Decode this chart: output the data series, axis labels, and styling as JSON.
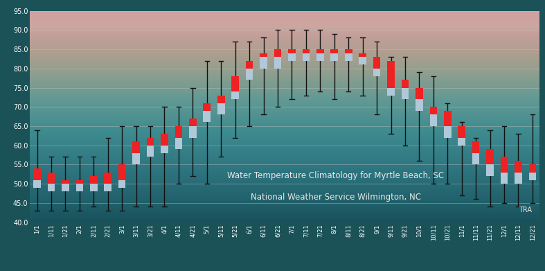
{
  "title1": "Water Temperature Climatology for Myrtle Beach, SC",
  "title2": "National Weather Service Wilmington, NC",
  "credit": "TRA",
  "ylim": [
    40.0,
    95.0
  ],
  "yticks": [
    40.0,
    45.0,
    50.0,
    55.0,
    60.0,
    65.0,
    70.0,
    75.0,
    80.0,
    85.0,
    90.0,
    95.0
  ],
  "x_labels": [
    "1/1",
    "1/11",
    "1/21",
    "2/1",
    "2/11",
    "2/21",
    "3/1",
    "3/11",
    "3/21",
    "4/1",
    "4/11",
    "4/21",
    "5/1",
    "5/11",
    "5/21",
    "6/1",
    "6/11",
    "6/21",
    "7/1",
    "7/11",
    "7/21",
    "8/1",
    "8/11",
    "8/21",
    "9/1",
    "9/11",
    "9/21",
    "10/1",
    "10/11",
    "10/21",
    "11/1",
    "11/11",
    "11/21",
    "12/1",
    "12/11",
    "12/21"
  ],
  "data": [
    {
      "label": "1/1",
      "low": 43,
      "q1": 49,
      "median": 51,
      "q3": 54,
      "high": 64
    },
    {
      "label": "1/11",
      "low": 43,
      "q1": 48,
      "median": 50,
      "q3": 53,
      "high": 57
    },
    {
      "label": "1/21",
      "low": 43,
      "q1": 48,
      "median": 50,
      "q3": 51,
      "high": 57
    },
    {
      "label": "2/1",
      "low": 43,
      "q1": 48,
      "median": 50,
      "q3": 51,
      "high": 57
    },
    {
      "label": "2/11",
      "low": 44,
      "q1": 48,
      "median": 50,
      "q3": 52,
      "high": 57
    },
    {
      "label": "2/21",
      "low": 43,
      "q1": 48,
      "median": 50,
      "q3": 53,
      "high": 62
    },
    {
      "label": "3/1",
      "low": 43,
      "q1": 49,
      "median": 51,
      "q3": 55,
      "high": 65
    },
    {
      "label": "3/11",
      "low": 44,
      "q1": 55,
      "median": 58,
      "q3": 61,
      "high": 65
    },
    {
      "label": "3/21",
      "low": 44,
      "q1": 57,
      "median": 60,
      "q3": 62,
      "high": 65
    },
    {
      "label": "4/1",
      "low": 44,
      "q1": 58,
      "median": 60,
      "q3": 63,
      "high": 70
    },
    {
      "label": "4/11",
      "low": 50,
      "q1": 59,
      "median": 62,
      "q3": 65,
      "high": 70
    },
    {
      "label": "4/21",
      "low": 52,
      "q1": 62,
      "median": 65,
      "q3": 67,
      "high": 75
    },
    {
      "label": "5/1",
      "low": 50,
      "q1": 66,
      "median": 69,
      "q3": 71,
      "high": 82
    },
    {
      "label": "5/11",
      "low": 57,
      "q1": 68,
      "median": 71,
      "q3": 73,
      "high": 82
    },
    {
      "label": "5/21",
      "low": 62,
      "q1": 72,
      "median": 74,
      "q3": 78,
      "high": 87
    },
    {
      "label": "6/1",
      "low": 65,
      "q1": 77,
      "median": 80,
      "q3": 82,
      "high": 87
    },
    {
      "label": "6/11",
      "low": 68,
      "q1": 80,
      "median": 83,
      "q3": 84,
      "high": 88
    },
    {
      "label": "6/21",
      "low": 70,
      "q1": 80,
      "median": 83,
      "q3": 85,
      "high": 90
    },
    {
      "label": "7/1",
      "low": 72,
      "q1": 82,
      "median": 84,
      "q3": 85,
      "high": 90
    },
    {
      "label": "7/11",
      "low": 73,
      "q1": 82,
      "median": 84,
      "q3": 85,
      "high": 90
    },
    {
      "label": "7/21",
      "low": 74,
      "q1": 82,
      "median": 84,
      "q3": 85,
      "high": 90
    },
    {
      "label": "8/1",
      "low": 72,
      "q1": 82,
      "median": 84,
      "q3": 85,
      "high": 89
    },
    {
      "label": "8/11",
      "low": 74,
      "q1": 82,
      "median": 84,
      "q3": 85,
      "high": 88
    },
    {
      "label": "8/21",
      "low": 73,
      "q1": 81,
      "median": 83,
      "q3": 84,
      "high": 88
    },
    {
      "label": "9/1",
      "low": 68,
      "q1": 78,
      "median": 80,
      "q3": 83,
      "high": 87
    },
    {
      "label": "9/11",
      "low": 63,
      "q1": 73,
      "median": 75,
      "q3": 82,
      "high": 83
    },
    {
      "label": "9/21",
      "low": 60,
      "q1": 72,
      "median": 75,
      "q3": 77,
      "high": 83
    },
    {
      "label": "10/1",
      "low": 56,
      "q1": 69,
      "median": 72,
      "q3": 75,
      "high": 79
    },
    {
      "label": "10/11",
      "low": 50,
      "q1": 65,
      "median": 68,
      "q3": 70,
      "high": 78
    },
    {
      "label": "10/21",
      "low": 50,
      "q1": 62,
      "median": 65,
      "q3": 69,
      "high": 71
    },
    {
      "label": "11/1",
      "low": 47,
      "q1": 60,
      "median": 62,
      "q3": 65,
      "high": 66
    },
    {
      "label": "11/11",
      "low": 46,
      "q1": 55,
      "median": 58,
      "q3": 61,
      "high": 62
    },
    {
      "label": "11/21",
      "low": 44,
      "q1": 52,
      "median": 55,
      "q3": 59,
      "high": 64
    },
    {
      "label": "12/1",
      "low": 45,
      "q1": 50,
      "median": 53,
      "q3": 57,
      "high": 65
    },
    {
      "label": "12/11",
      "low": 44,
      "q1": 50,
      "median": 53,
      "q3": 56,
      "high": 63
    },
    {
      "label": "12/21",
      "low": 45,
      "q1": 51,
      "median": 53,
      "q3": 55,
      "high": 68
    }
  ],
  "box_red_color": "#ee2222",
  "box_blue_color": "#b0c8d8",
  "whisker_color": "#111111",
  "grid_color": "#c0c0c0",
  "text_color": "#e8e8e8",
  "axis_text_color": "#ffffff",
  "bg_gradient": [
    [
      0.0,
      [
        0.1,
        0.32,
        0.36
      ]
    ],
    [
      0.1,
      [
        0.13,
        0.38,
        0.42
      ]
    ],
    [
      0.25,
      [
        0.18,
        0.46,
        0.5
      ]
    ],
    [
      0.42,
      [
        0.24,
        0.54,
        0.56
      ]
    ],
    [
      0.58,
      [
        0.38,
        0.6,
        0.58
      ]
    ],
    [
      0.7,
      [
        0.55,
        0.62,
        0.56
      ]
    ],
    [
      0.8,
      [
        0.68,
        0.62,
        0.56
      ]
    ],
    [
      0.88,
      [
        0.76,
        0.62,
        0.6
      ]
    ],
    [
      0.93,
      [
        0.8,
        0.65,
        0.63
      ]
    ],
    [
      1.0,
      [
        0.82,
        0.63,
        0.63
      ]
    ]
  ]
}
